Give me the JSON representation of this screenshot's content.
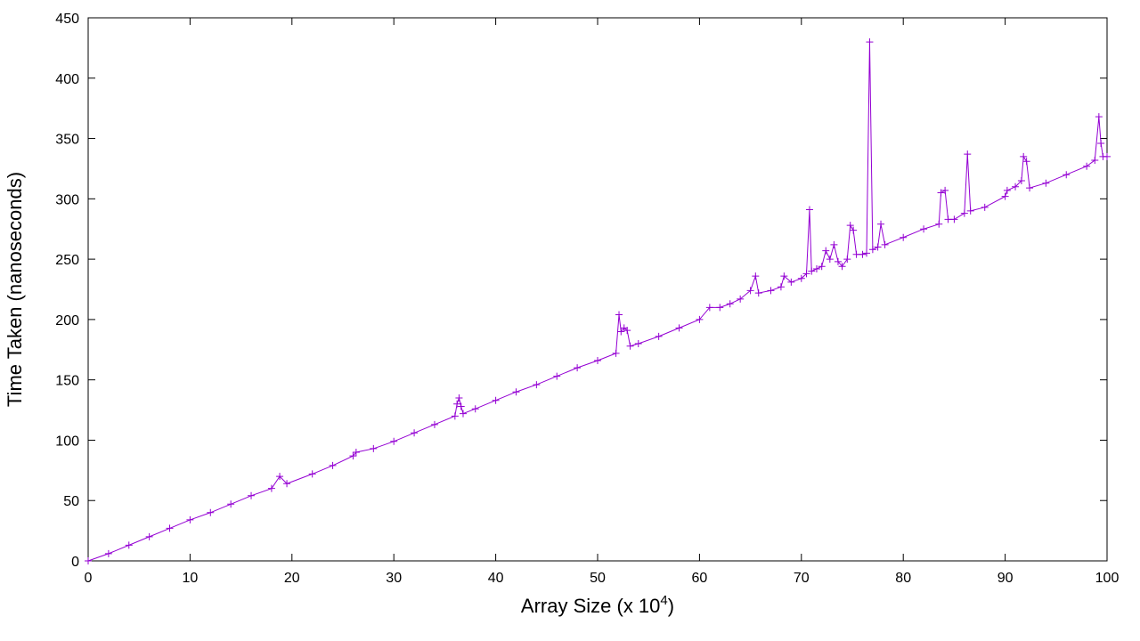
{
  "chart_data": {
    "type": "line",
    "title": "",
    "xlabel": "Array Size (x 10",
    "xlabel_superscript": "4",
    "xlabel_suffix": ")",
    "ylabel": "Time Taken (nanoseconds)",
    "xlim": [
      0,
      100
    ],
    "ylim": [
      0,
      450
    ],
    "xticks": [
      0,
      10,
      20,
      30,
      40,
      50,
      60,
      70,
      80,
      90,
      100
    ],
    "yticks": [
      0,
      50,
      100,
      150,
      200,
      250,
      300,
      350,
      400,
      450
    ],
    "grid": false,
    "legend": "none",
    "series": [
      {
        "color": "#9400d3",
        "marker": "plus",
        "points": [
          [
            0,
            0
          ],
          [
            2,
            6
          ],
          [
            4,
            13
          ],
          [
            6,
            20
          ],
          [
            8,
            27
          ],
          [
            10,
            34
          ],
          [
            12,
            40
          ],
          [
            14,
            47
          ],
          [
            16,
            54
          ],
          [
            18,
            60
          ],
          [
            18.8,
            70
          ],
          [
            19.5,
            64
          ],
          [
            22,
            72
          ],
          [
            24,
            79
          ],
          [
            26,
            87
          ],
          [
            26.3,
            90
          ],
          [
            28,
            93
          ],
          [
            30,
            99
          ],
          [
            32,
            106
          ],
          [
            34,
            113
          ],
          [
            36,
            120
          ],
          [
            36.2,
            130
          ],
          [
            36.4,
            135
          ],
          [
            36.6,
            128
          ],
          [
            36.8,
            122
          ],
          [
            38,
            126
          ],
          [
            40,
            133
          ],
          [
            42,
            140
          ],
          [
            44,
            146
          ],
          [
            46,
            153
          ],
          [
            48,
            160
          ],
          [
            50,
            166
          ],
          [
            51.8,
            172
          ],
          [
            52.1,
            204
          ],
          [
            52.3,
            190
          ],
          [
            52.6,
            193
          ],
          [
            52.9,
            191
          ],
          [
            53.2,
            178
          ],
          [
            54,
            180
          ],
          [
            56,
            186
          ],
          [
            58,
            193
          ],
          [
            60,
            200
          ],
          [
            61,
            210
          ],
          [
            62,
            210
          ],
          [
            63,
            213
          ],
          [
            64,
            217
          ],
          [
            65,
            224
          ],
          [
            65.5,
            236
          ],
          [
            65.8,
            222
          ],
          [
            67,
            224
          ],
          [
            68,
            227
          ],
          [
            68.3,
            236
          ],
          [
            69,
            231
          ],
          [
            70,
            234
          ],
          [
            70.5,
            238
          ],
          [
            70.8,
            291
          ],
          [
            71.0,
            240
          ],
          [
            71.5,
            242
          ],
          [
            72,
            244
          ],
          [
            72.4,
            257
          ],
          [
            72.8,
            250
          ],
          [
            73.2,
            262
          ],
          [
            73.6,
            248
          ],
          [
            74,
            244
          ],
          [
            74.5,
            250
          ],
          [
            74.8,
            278
          ],
          [
            75.1,
            274
          ],
          [
            75.4,
            254
          ],
          [
            76,
            254
          ],
          [
            76.4,
            255
          ],
          [
            76.7,
            430
          ],
          [
            77.0,
            258
          ],
          [
            77.5,
            260
          ],
          [
            77.8,
            279
          ],
          [
            78.2,
            262
          ],
          [
            80,
            268
          ],
          [
            82,
            275
          ],
          [
            83.5,
            279
          ],
          [
            83.7,
            305
          ],
          [
            84.1,
            307
          ],
          [
            84.4,
            283
          ],
          [
            85,
            283
          ],
          [
            86,
            288
          ],
          [
            86.3,
            337
          ],
          [
            86.6,
            290
          ],
          [
            88,
            293
          ],
          [
            90,
            302
          ],
          [
            90.2,
            307
          ],
          [
            91,
            310
          ],
          [
            91.6,
            315
          ],
          [
            91.8,
            335
          ],
          [
            92.1,
            331
          ],
          [
            92.4,
            309
          ],
          [
            94,
            313
          ],
          [
            96,
            320
          ],
          [
            98,
            327
          ],
          [
            98.8,
            332
          ],
          [
            99.2,
            368
          ],
          [
            99.4,
            346
          ],
          [
            99.6,
            335
          ],
          [
            100,
            335
          ]
        ]
      }
    ]
  }
}
